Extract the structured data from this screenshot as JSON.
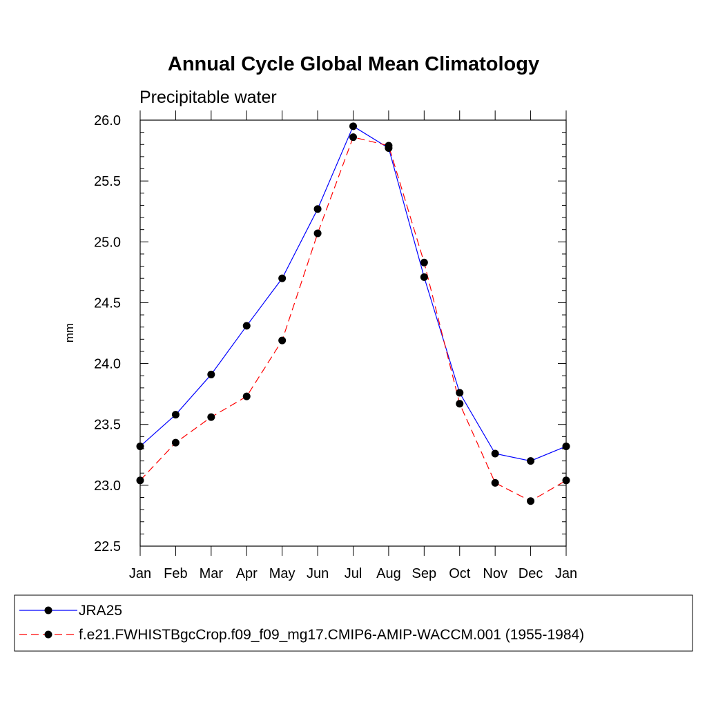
{
  "chart_data": {
    "type": "line",
    "title": "Annual Cycle Global Mean Climatology",
    "subtitle": "Precipitable water",
    "xlabel": "",
    "ylabel": "mm",
    "categories": [
      "Jan",
      "Feb",
      "Mar",
      "Apr",
      "May",
      "Jun",
      "Jul",
      "Aug",
      "Sep",
      "Oct",
      "Nov",
      "Dec",
      "Jan"
    ],
    "ylim": [
      22.5,
      26.0
    ],
    "yticks": [
      "22.5",
      "23.0",
      "23.5",
      "24.0",
      "24.5",
      "25.0",
      "25.5",
      "26.0"
    ],
    "grid": false,
    "legend_position": "bottom",
    "series": [
      {
        "name": "JRA25",
        "color": "#0000ff",
        "line_style": "solid",
        "marker": "filled-circle",
        "values": [
          23.32,
          23.58,
          23.91,
          24.31,
          24.7,
          25.27,
          25.95,
          25.77,
          24.71,
          23.76,
          23.26,
          23.2,
          23.32
        ]
      },
      {
        "name": "f.e21.FWHISTBgcCrop.f09_f09_mg17.CMIP6-AMIP-WACCM.001 (1955-1984)",
        "color": "#ff0000",
        "line_style": "dashed",
        "marker": "filled-circle",
        "values": [
          23.04,
          23.35,
          23.56,
          23.73,
          24.19,
          25.07,
          25.86,
          25.79,
          24.83,
          23.67,
          23.02,
          22.87,
          23.04
        ]
      }
    ]
  }
}
